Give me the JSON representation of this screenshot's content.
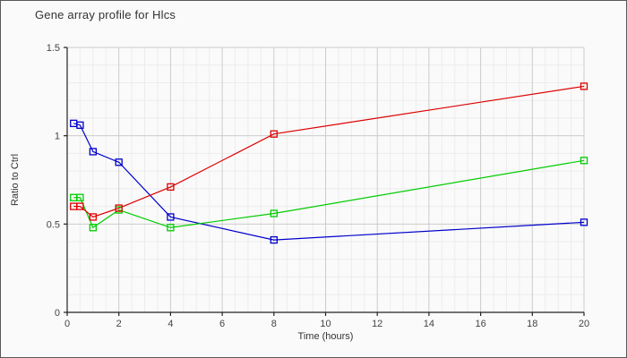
{
  "window": {
    "bg_color": "#fafafa",
    "border_color": "#595959"
  },
  "chart_data": {
    "type": "line",
    "title": "Gene array profile for Hlcs",
    "xlabel": "Time (hours)",
    "ylabel": "Ratio to Ctrl",
    "xlim": [
      0,
      20
    ],
    "ylim": [
      0,
      1.5
    ],
    "x": [
      0.25,
      0.5,
      1,
      2,
      4,
      8,
      20
    ],
    "series": [
      {
        "name": "blue",
        "color": "#0000cc",
        "values": [
          1.07,
          1.06,
          0.91,
          0.85,
          0.54,
          0.41,
          0.51
        ]
      },
      {
        "name": "green",
        "color": "#00cc00",
        "values": [
          0.65,
          0.65,
          0.48,
          0.58,
          0.48,
          0.56,
          0.86
        ]
      },
      {
        "name": "red",
        "color": "#dd0000",
        "values": [
          0.6,
          0.6,
          0.54,
          0.59,
          0.71,
          1.01,
          1.28
        ]
      }
    ],
    "marker": "open-square",
    "xticks": [
      0,
      2,
      4,
      6,
      8,
      10,
      12,
      14,
      16,
      18,
      20
    ],
    "xtick_labels": [
      "0",
      "2",
      "4",
      "6",
      "8",
      "10",
      "12",
      "14",
      "16",
      "18",
      "20"
    ],
    "yticks": [
      0,
      0.5,
      1,
      1.5
    ],
    "ytick_labels": [
      "0",
      "0.5",
      "1",
      "1.5"
    ],
    "x_minor_step": 0.5,
    "y_minor_step": 0.1,
    "grid": {
      "major_color": "#cccccc",
      "minor_color": "#ececec",
      "visible": true
    },
    "axis_color": "#222222",
    "legend": "none"
  }
}
